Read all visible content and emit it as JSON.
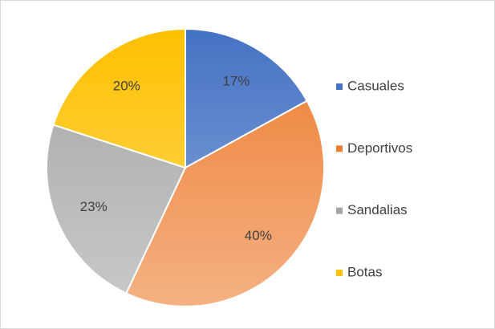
{
  "chart_data": {
    "type": "pie",
    "categories": [
      "Casuales",
      "Deportivos",
      "Sandalias",
      "Botas"
    ],
    "values": [
      17,
      40,
      23,
      20
    ],
    "value_labels": [
      "17%",
      "40%",
      "23%",
      "20%"
    ],
    "colors": [
      "#4472c4",
      "#ed7d31",
      "#a5a5a5",
      "#ffc000"
    ],
    "legend": "right"
  }
}
